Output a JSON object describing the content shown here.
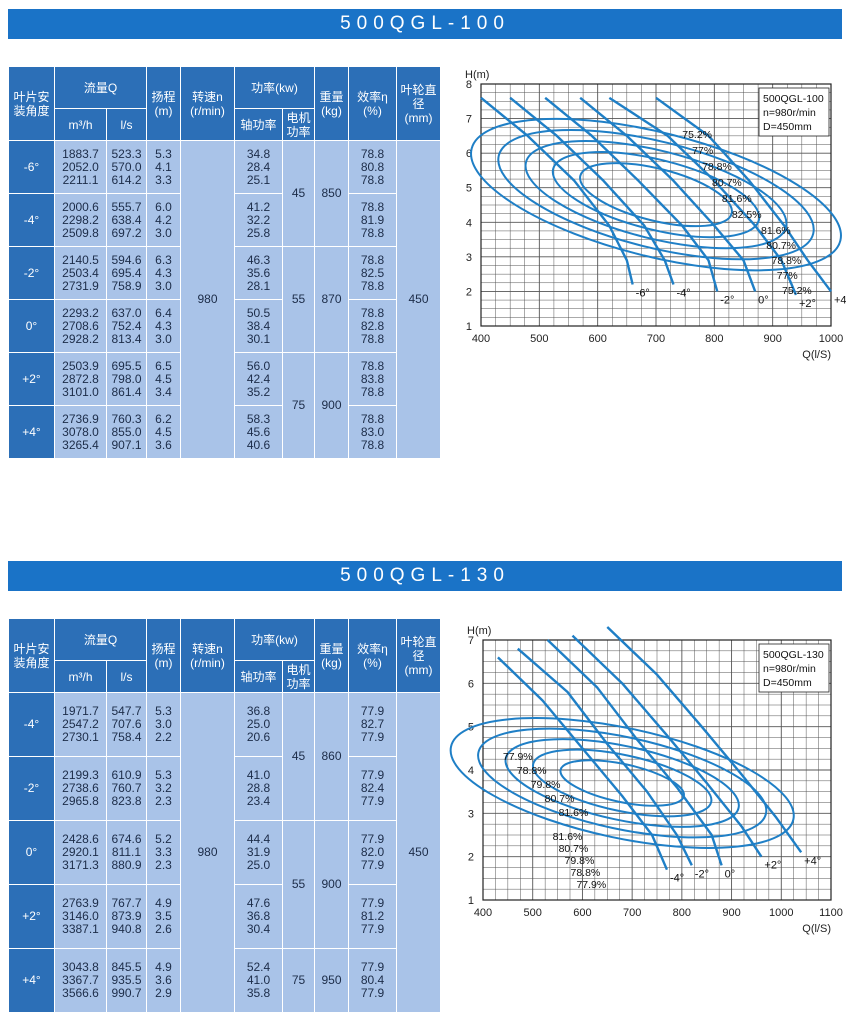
{
  "sections": [
    {
      "title": "500QGL-100",
      "headers": {
        "angle": "叶片安装角度",
        "flow": "流量Q",
        "flow_m3": "m³/h",
        "flow_ls": "l/s",
        "head": "扬程",
        "head_unit": "(m)",
        "speed": "转速n",
        "speed_unit": "(r/min)",
        "power": "功率(kw)",
        "shaft_power": "轴功率",
        "motor_power": "电机功率",
        "weight": "重量",
        "weight_unit": "(kg)",
        "eff": "效率η",
        "eff_unit": "(%)",
        "impeller": "叶轮直径",
        "impeller_unit": "(mm)"
      },
      "speed": "980",
      "impeller": "450",
      "groups": [
        {
          "angle": "-6°",
          "m3h": [
            "1883.7",
            "2052.0",
            "2211.1"
          ],
          "ls": [
            "523.3",
            "570.0",
            "614.2"
          ],
          "head": [
            "5.3",
            "4.1",
            "3.3"
          ],
          "shaft": [
            "34.8",
            "28.4",
            "25.1"
          ],
          "eff": [
            "78.8",
            "80.8",
            "78.8"
          ]
        },
        {
          "angle": "-4°",
          "m3h": [
            "2000.6",
            "2298.2",
            "2509.8"
          ],
          "ls": [
            "555.7",
            "638.4",
            "697.2"
          ],
          "head": [
            "6.0",
            "4.2",
            "3.0"
          ],
          "shaft": [
            "41.2",
            "32.2",
            "25.8"
          ],
          "eff": [
            "78.8",
            "81.9",
            "78.8"
          ]
        },
        {
          "angle": "-2°",
          "m3h": [
            "2140.5",
            "2503.4",
            "2731.9"
          ],
          "ls": [
            "594.6",
            "695.4",
            "758.9"
          ],
          "head": [
            "6.3",
            "4.3",
            "3.0"
          ],
          "shaft": [
            "46.3",
            "35.6",
            "28.1"
          ],
          "eff": [
            "78.8",
            "82.5",
            "78.8"
          ]
        },
        {
          "angle": "0°",
          "m3h": [
            "2293.2",
            "2708.6",
            "2928.2"
          ],
          "ls": [
            "637.0",
            "752.4",
            "813.4"
          ],
          "head": [
            "6.4",
            "4.3",
            "3.0"
          ],
          "shaft": [
            "50.5",
            "38.4",
            "30.1"
          ],
          "eff": [
            "78.8",
            "82.8",
            "78.8"
          ]
        },
        {
          "angle": "+2°",
          "m3h": [
            "2503.9",
            "2872.8",
            "3101.0"
          ],
          "ls": [
            "695.5",
            "798.0",
            "861.4"
          ],
          "head": [
            "6.5",
            "4.5",
            "3.4"
          ],
          "shaft": [
            "56.0",
            "42.4",
            "35.2"
          ],
          "eff": [
            "78.8",
            "83.8",
            "78.8"
          ]
        },
        {
          "angle": "+4°",
          "m3h": [
            "2736.9",
            "3078.0",
            "3265.4"
          ],
          "ls": [
            "760.3",
            "855.0",
            "907.1"
          ],
          "head": [
            "6.2",
            "4.5",
            "3.6"
          ],
          "shaft": [
            "58.3",
            "45.6",
            "40.6"
          ],
          "eff": [
            "78.8",
            "83.0",
            "78.8"
          ]
        }
      ],
      "motor": [
        {
          "value": "45",
          "span": 2
        },
        {
          "value": "55",
          "span": 2
        },
        {
          "value": "75",
          "span": 2
        }
      ],
      "weight": [
        {
          "value": "850",
          "span": 2
        },
        {
          "value": "870",
          "span": 2
        },
        {
          "value": "900",
          "span": 2
        }
      ]
    },
    {
      "title": "500QGL-130",
      "headers": {
        "angle": "叶片安装角度",
        "flow": "流量Q",
        "flow_m3": "m³/h",
        "flow_ls": "l/s",
        "head": "扬程",
        "head_unit": "(m)",
        "speed": "转速n",
        "speed_unit": "(r/min)",
        "power": "功率(kw)",
        "shaft_power": "轴功率",
        "motor_power": "电机功率",
        "weight": "重量",
        "weight_unit": "(kg)",
        "eff": "效率η",
        "eff_unit": "(%)",
        "impeller": "叶轮直径",
        "impeller_unit": "(mm)"
      },
      "speed": "980",
      "impeller": "450",
      "groups": [
        {
          "angle": "-4°",
          "m3h": [
            "1971.7",
            "2547.2",
            "2730.1"
          ],
          "ls": [
            "547.7",
            "707.6",
            "758.4"
          ],
          "head": [
            "5.3",
            "3.0",
            "2.2"
          ],
          "shaft": [
            "36.8",
            "25.0",
            "20.6"
          ],
          "eff": [
            "77.9",
            "82.7",
            "77.9"
          ]
        },
        {
          "angle": "-2°",
          "m3h": [
            "2199.3",
            "2738.6",
            "2965.8"
          ],
          "ls": [
            "610.9",
            "760.7",
            "823.8"
          ],
          "head": [
            "5.3",
            "3.2",
            "2.3"
          ],
          "shaft": [
            "41.0",
            "28.8",
            "23.4"
          ],
          "eff": [
            "77.9",
            "82.4",
            "77.9"
          ]
        },
        {
          "angle": "0°",
          "m3h": [
            "2428.6",
            "2920.1",
            "3171.3"
          ],
          "ls": [
            "674.6",
            "811.1",
            "880.9"
          ],
          "head": [
            "5.2",
            "3.3",
            "2.3"
          ],
          "shaft": [
            "44.4",
            "31.9",
            "25.0"
          ],
          "eff": [
            "77.9",
            "82.0",
            "77.9"
          ]
        },
        {
          "angle": "+2°",
          "m3h": [
            "2763.9",
            "3146.0",
            "3387.1"
          ],
          "ls": [
            "767.7",
            "873.9",
            "940.8"
          ],
          "head": [
            "4.9",
            "3.5",
            "2.6"
          ],
          "shaft": [
            "47.6",
            "36.8",
            "30.4"
          ],
          "eff": [
            "77.9",
            "81.2",
            "77.9"
          ]
        },
        {
          "angle": "+4°",
          "m3h": [
            "3043.8",
            "3367.7",
            "3566.6"
          ],
          "ls": [
            "845.5",
            "935.5",
            "990.7"
          ],
          "head": [
            "4.9",
            "3.6",
            "2.9"
          ],
          "shaft": [
            "52.4",
            "41.0",
            "35.8"
          ],
          "eff": [
            "77.9",
            "80.4",
            "77.9"
          ]
        }
      ],
      "motor": [
        {
          "value": "45",
          "span": 2
        },
        {
          "value": "55",
          "span": 2
        },
        {
          "value": "75",
          "span": 1
        }
      ],
      "weight": [
        {
          "value": "860",
          "span": 2
        },
        {
          "value": "900",
          "span": 2
        },
        {
          "value": "950",
          "span": 1
        }
      ]
    }
  ],
  "chart_data": [
    {
      "type": "line",
      "title": "500QGL-100",
      "info": [
        "500QGL-100",
        "n=980r/min",
        "D=450mm"
      ],
      "xlabel": "Q(l/S)",
      "ylabel": "H(m)",
      "xlim": [
        400,
        1000
      ],
      "ylim": [
        1,
        8
      ],
      "xticks": [
        "400",
        "500",
        "600",
        "700",
        "800",
        "900",
        "1000"
      ],
      "yticks": [
        "1",
        "2",
        "3",
        "4",
        "5",
        "6",
        "7",
        "8"
      ],
      "grid": true,
      "series": [
        {
          "name": "-6°",
          "points": [
            [
              400,
              7.6
            ],
            [
              480,
              6.5
            ],
            [
              560,
              5.2
            ],
            [
              620,
              3.9
            ],
            [
              650,
              2.9
            ],
            [
              660,
              2.2
            ]
          ]
        },
        {
          "name": "-4°",
          "points": [
            [
              450,
              7.6
            ],
            [
              530,
              6.5
            ],
            [
              610,
              5.2
            ],
            [
              680,
              3.9
            ],
            [
              715,
              2.9
            ],
            [
              730,
              2.2
            ]
          ]
        },
        {
          "name": "-2°",
          "points": [
            [
              510,
              7.6
            ],
            [
              590,
              6.5
            ],
            [
              670,
              5.2
            ],
            [
              745,
              3.9
            ],
            [
              790,
              2.9
            ],
            [
              805,
              2.0
            ]
          ]
        },
        {
          "name": "0°",
          "points": [
            [
              570,
              7.6
            ],
            [
              650,
              6.5
            ],
            [
              730,
              5.2
            ],
            [
              800,
              3.9
            ],
            [
              850,
              2.9
            ],
            [
              870,
              2.0
            ]
          ]
        },
        {
          "name": "+2°",
          "points": [
            [
              620,
              7.6
            ],
            [
              720,
              6.5
            ],
            [
              800,
              5.2
            ],
            [
              870,
              3.9
            ],
            [
              915,
              2.9
            ],
            [
              940,
              1.9
            ]
          ]
        },
        {
          "name": "+4°",
          "points": [
            [
              700,
              7.6
            ],
            [
              790,
              6.5
            ],
            [
              860,
              5.2
            ],
            [
              920,
              3.9
            ],
            [
              960,
              2.9
            ],
            [
              1000,
              2.0
            ]
          ]
        }
      ],
      "efficiency_labels": [
        "75.2%",
        "77%",
        "78.8%",
        "80.7%",
        "81.6%",
        "82.5%",
        "81.6%",
        "80.7%",
        "78.8%",
        "77%",
        "75.2%"
      ]
    },
    {
      "type": "line",
      "title": "500QGL-130",
      "info": [
        "500QGL-130",
        "n=980r/min",
        "D=450mm"
      ],
      "xlabel": "Q(l/S)",
      "ylabel": "H(m)",
      "xlim": [
        400,
        1100
      ],
      "ylim": [
        1,
        7
      ],
      "xticks": [
        "400",
        "500",
        "600",
        "700",
        "800",
        "900",
        "1000",
        "1100"
      ],
      "yticks": [
        "1",
        "2",
        "3",
        "4",
        "5",
        "6",
        "7"
      ],
      "grid": true,
      "series": [
        {
          "name": "-4°",
          "points": [
            [
              430,
              6.6
            ],
            [
              520,
              5.6
            ],
            [
              600,
              4.5
            ],
            [
              680,
              3.4
            ],
            [
              740,
              2.5
            ],
            [
              770,
              1.7
            ]
          ]
        },
        {
          "name": "-2°",
          "points": [
            [
              470,
              6.8
            ],
            [
              570,
              5.8
            ],
            [
              650,
              4.6
            ],
            [
              730,
              3.5
            ],
            [
              790,
              2.5
            ],
            [
              820,
              1.8
            ]
          ]
        },
        {
          "name": "0°",
          "points": [
            [
              530,
              7.0
            ],
            [
              630,
              5.9
            ],
            [
              710,
              4.7
            ],
            [
              790,
              3.6
            ],
            [
              860,
              2.5
            ],
            [
              880,
              1.8
            ]
          ]
        },
        {
          "name": "+2°",
          "points": [
            [
              580,
              7.1
            ],
            [
              680,
              6.0
            ],
            [
              770,
              4.8
            ],
            [
              850,
              3.7
            ],
            [
              920,
              2.7
            ],
            [
              960,
              2.0
            ]
          ]
        },
        {
          "name": "+4°",
          "points": [
            [
              650,
              7.3
            ],
            [
              750,
              6.2
            ],
            [
              840,
              5.0
            ],
            [
              920,
              3.9
            ],
            [
              990,
              2.9
            ],
            [
              1040,
              2.1
            ]
          ]
        }
      ],
      "efficiency_labels": [
        "77.9%",
        "78.8%",
        "79.8%",
        "80.7%",
        "81.6%",
        "81.6%",
        "80.7%",
        "79.8%",
        "78.8%",
        "77.9%"
      ]
    }
  ]
}
